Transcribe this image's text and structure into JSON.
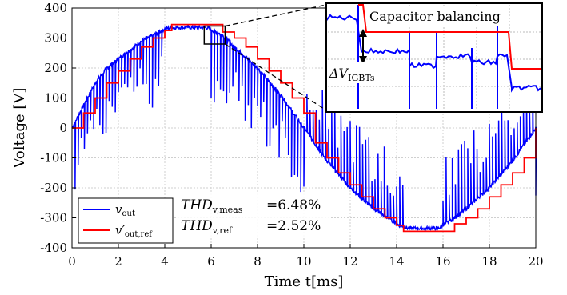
{
  "chart_data": {
    "type": "line",
    "xlabel": "Time t[ms]",
    "ylabel": "Voltage [V]",
    "xlim": [
      0,
      20
    ],
    "ylim": [
      -400,
      400
    ],
    "xticks": [
      0,
      2,
      4,
      6,
      8,
      10,
      12,
      14,
      16,
      18,
      20
    ],
    "yticks": [
      -400,
      -300,
      -200,
      -100,
      0,
      100,
      200,
      300,
      400
    ],
    "xtick_labels": [
      "0",
      "2",
      "4",
      "6",
      "8",
      "10",
      "12",
      "14",
      "16",
      "18",
      "20"
    ],
    "ytick_labels": [
      "-400",
      "-300",
      "-200",
      "-100",
      "0",
      "100",
      "200",
      "300",
      "400"
    ],
    "grid": true,
    "legend": "bottom-left",
    "series": [
      {
        "name": "v_out",
        "color": "#0000ff",
        "description_values": "switched multilevel waveform following the reference with deep PWM notches",
        "x": [
          0,
          0.2,
          0.4,
          0.6,
          0.8,
          1.0,
          1.5,
          2.0,
          2.5,
          3.0,
          3.5,
          4.0,
          4.3,
          5.0,
          5.8,
          6.5,
          7.0,
          8.0,
          9.0,
          10.0,
          11.0,
          12.0,
          13.0,
          14.0,
          14.5,
          15.0,
          15.8,
          16.5,
          17.0,
          18.0,
          19.0,
          20.0
        ],
        "y": [
          0,
          30,
          60,
          90,
          120,
          150,
          200,
          230,
          260,
          290,
          310,
          330,
          335,
          335,
          335,
          310,
          270,
          200,
          110,
          0,
          -110,
          -200,
          -270,
          -320,
          -335,
          -335,
          -335,
          -300,
          -270,
          -200,
          -110,
          0
        ]
      },
      {
        "name": "v'_out,ref",
        "color": "#ff0000",
        "description_values": "staircase approximation of a 50 Hz sinusoid, amplitude about 345 V",
        "x": [
          0,
          0.5,
          1.0,
          1.5,
          2.0,
          2.5,
          3.0,
          3.5,
          4.0,
          4.3,
          5.0,
          5.8,
          6.5,
          7.0,
          7.5,
          8.0,
          8.5,
          9.0,
          9.5,
          10.0,
          10.5,
          11.0,
          11.5,
          12.0,
          12.5,
          13.0,
          13.5,
          14.0,
          14.3,
          15.0,
          15.8,
          16.5,
          17.0,
          17.5,
          18.0,
          18.5,
          19.0,
          19.5,
          20.0
        ],
        "y": [
          0,
          50,
          100,
          150,
          190,
          230,
          270,
          300,
          325,
          345,
          345,
          345,
          320,
          300,
          270,
          230,
          190,
          150,
          100,
          50,
          -50,
          -100,
          -150,
          -190,
          -230,
          -270,
          -300,
          -325,
          -345,
          -345,
          -345,
          -320,
          -300,
          -270,
          -230,
          -190,
          -150,
          -100,
          0
        ]
      }
    ],
    "annotations": {
      "thd_meas_label": "THD",
      "thd_meas_sub": "v,meas",
      "thd_meas_value": "=6.48%",
      "thd_ref_label": "THD",
      "thd_ref_sub": "v,ref",
      "thd_ref_value": "=2.52%",
      "inset_title": "Capacitor balancing",
      "inset_delta_label": "ΔV",
      "inset_delta_sub": "IGBTs",
      "zoom_box_x": [
        5.7,
        6.6
      ],
      "zoom_box_y": [
        280,
        340
      ]
    },
    "legend_entries": [
      {
        "symbol": "v",
        "sub": "out",
        "color": "#0000ff"
      },
      {
        "symbol": "v′",
        "sub": "out,ref",
        "color": "#ff0000"
      }
    ]
  }
}
